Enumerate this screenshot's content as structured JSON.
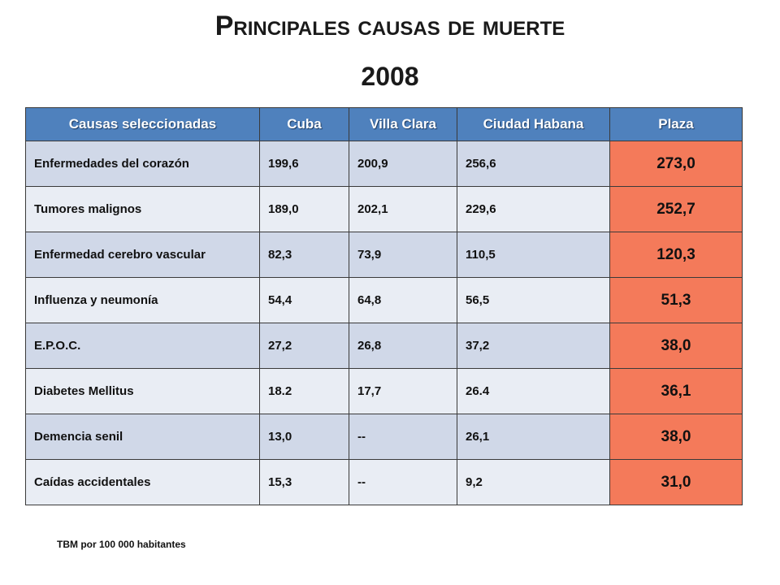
{
  "title": "Principales causas de muerte",
  "subtitle": "2008",
  "table": {
    "headers": [
      "Causas seleccionadas",
      "Cuba",
      "Villa Clara",
      "Ciudad Habana",
      "Plaza"
    ],
    "rows": [
      [
        "Enfermedades del corazón",
        "199,6",
        "200,9",
        "256,6",
        "273,0"
      ],
      [
        "Tumores malignos",
        "189,0",
        "202,1",
        "229,6",
        "252,7"
      ],
      [
        "Enfermedad cerebro vascular",
        "82,3",
        "73,9",
        "110,5",
        "120,3"
      ],
      [
        "Influenza y neumonía",
        "54,4",
        "64,8",
        "56,5",
        "51,3"
      ],
      [
        "E.P.O.C.",
        "27,2",
        "26,8",
        "37,2",
        "38,0"
      ],
      [
        "Diabetes Mellitus",
        "18.2",
        "17,7",
        "26.4",
        "36,1"
      ],
      [
        "Demencia senil",
        "13,0",
        "--",
        "26,1",
        "38,0"
      ],
      [
        "Caídas accidentales",
        "15,3",
        "--",
        "9,2",
        "31,0"
      ]
    ]
  },
  "colors": {
    "header_bg": "#4f81bd",
    "row_bg_a": "#d0d8e8",
    "row_bg_b": "#e9edf4",
    "highlight": "#f47a5a"
  },
  "footnote": "TBM por 100 000 habitantes"
}
